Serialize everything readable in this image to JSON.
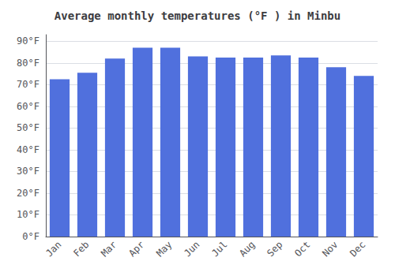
{
  "chart_data": {
    "type": "bar",
    "title": "Average monthly temperatures (°F ) in Minbu",
    "categories": [
      "Jan",
      "Feb",
      "Mar",
      "Apr",
      "May",
      "Jun",
      "Jul",
      "Aug",
      "Sep",
      "Oct",
      "Nov",
      "Dec"
    ],
    "values": [
      72.5,
      75.5,
      82.0,
      87.0,
      87.0,
      83.0,
      82.5,
      82.5,
      83.5,
      82.5,
      78.0,
      74.0
    ],
    "ylim": [
      0,
      93
    ],
    "yticks": [
      {
        "value": 0,
        "label": "0°F"
      },
      {
        "value": 10,
        "label": "10°F"
      },
      {
        "value": 20,
        "label": "20°F"
      },
      {
        "value": 30,
        "label": "30°F"
      },
      {
        "value": 40,
        "label": "40°F"
      },
      {
        "value": 50,
        "label": "50°F"
      },
      {
        "value": 60,
        "label": "60°F"
      },
      {
        "value": 70,
        "label": "70°F"
      },
      {
        "value": 80,
        "label": "80°F"
      },
      {
        "value": 90,
        "label": "90°F"
      }
    ],
    "grid": true
  }
}
